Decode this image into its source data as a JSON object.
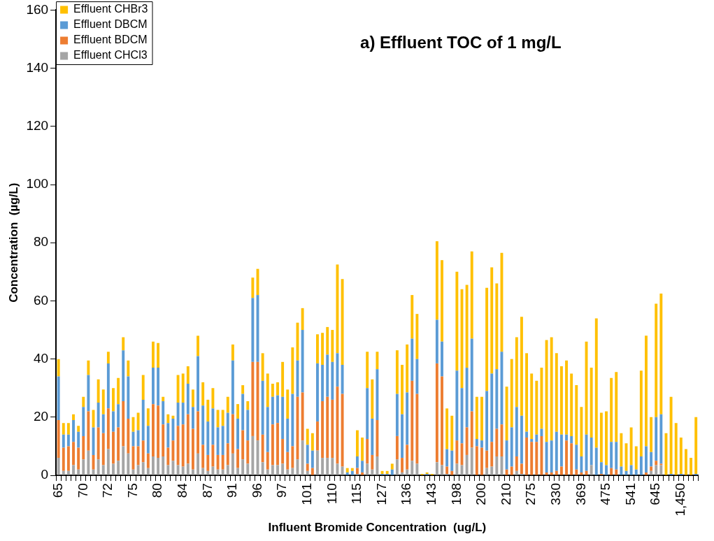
{
  "chart_data": {
    "type": "bar",
    "title": "a) Effluent TOC of 1 mg/L",
    "xlabel": "Influent Bromide Concentration  (ug/L)",
    "ylabel": "Concentration  (µg/L)",
    "categories": [
      "65",
      null,
      null,
      null,
      null,
      "70",
      null,
      null,
      null,
      null,
      "72",
      null,
      null,
      null,
      null,
      "75",
      null,
      null,
      null,
      null,
      "80",
      null,
      null,
      null,
      null,
      "84",
      null,
      null,
      null,
      null,
      "87",
      null,
      null,
      null,
      null,
      "91",
      null,
      null,
      null,
      null,
      "96",
      null,
      null,
      null,
      null,
      "97",
      null,
      null,
      null,
      null,
      "101",
      null,
      null,
      null,
      null,
      "110",
      null,
      null,
      null,
      null,
      "115",
      null,
      null,
      null,
      null,
      "127",
      null,
      null,
      null,
      null,
      "136",
      null,
      null,
      null,
      null,
      "143",
      null,
      null,
      null,
      null,
      "198",
      null,
      null,
      null,
      null,
      "200",
      null,
      null,
      null,
      null,
      "210",
      null,
      null,
      null,
      null,
      "275",
      null,
      null,
      null,
      null,
      "330",
      null,
      null,
      null,
      null,
      "369",
      null,
      null,
      null,
      null,
      "475",
      null,
      null,
      null,
      null,
      "541",
      null,
      null,
      null,
      null,
      "645",
      null,
      null,
      null,
      null,
      "1,450",
      null,
      null,
      null
    ],
    "stacked": true,
    "ylim": [
      0,
      160
    ],
    "yticks": [
      0,
      20,
      40,
      60,
      80,
      100,
      120,
      140,
      160
    ],
    "grid": false,
    "legend": "top left",
    "series": [
      {
        "name": "Effluent CHCl3",
        "color": "#a5a5a5",
        "values": [
          6,
          1.5,
          1.5,
          3.5,
          2,
          5.5,
          8.5,
          2,
          5.5,
          3.5,
          9,
          4,
          5,
          10,
          7.5,
          2,
          3.5,
          4.5,
          2.5,
          6.5,
          6,
          6.5,
          3.5,
          5,
          3.5,
          3,
          4,
          2,
          7.5,
          2.5,
          1.5,
          3,
          2,
          2,
          3.5,
          7.5,
          2.5,
          5.5,
          4,
          13.5,
          12,
          4.5,
          2,
          3.5,
          3.5,
          4,
          2,
          2.5,
          5.5,
          12,
          1.5,
          0,
          8.5,
          6,
          6,
          6,
          4,
          3,
          0,
          0,
          0.5,
          0,
          4,
          2,
          6.5,
          0,
          0,
          0,
          5.5,
          1,
          2,
          5,
          4,
          0,
          0,
          0,
          4.5,
          3.5,
          0.5,
          0,
          4,
          3.5,
          7,
          9.5,
          0,
          0,
          2.5,
          3,
          6.5,
          6.5,
          0,
          0,
          1.5,
          0.5,
          0,
          0,
          0,
          0,
          0,
          0,
          0,
          0,
          0,
          0,
          0,
          0,
          0,
          3.5,
          0,
          0,
          0,
          0,
          0,
          0,
          0,
          0,
          0,
          0,
          0,
          1.5,
          3.5,
          3.5,
          0,
          0,
          0,
          0,
          0,
          0,
          0
        ]
      },
      {
        "name": "Effluent BDCM",
        "color": "#ed7d31",
        "values": [
          13,
          8,
          8.5,
          8,
          7.5,
          8,
          13.5,
          5,
          11,
          11,
          14,
          11,
          11.5,
          15.5,
          12,
          8,
          6.5,
          7.5,
          5,
          18,
          18,
          11,
          6,
          7,
          13.5,
          14.5,
          17,
          14,
          14.5,
          8,
          5.5,
          7.5,
          5,
          5,
          7.5,
          13.5,
          6.5,
          10,
          8,
          25.5,
          27,
          9.5,
          6,
          14,
          14.5,
          8.5,
          6,
          7.5,
          21.5,
          16.5,
          2.5,
          2.5,
          10,
          19.5,
          21,
          20,
          26.5,
          25,
          0,
          0,
          2,
          1,
          8.5,
          5,
          12.5,
          0,
          0,
          0,
          8,
          5,
          8.5,
          27.5,
          24,
          0,
          0,
          0,
          34,
          30.5,
          2.5,
          1.5,
          8,
          7.5,
          9.5,
          12.5,
          10,
          9.5,
          6,
          8.5,
          9.5,
          11,
          2,
          3,
          5,
          3.5,
          13,
          11.5,
          11.5,
          13.5,
          1,
          1,
          1.5,
          3,
          12,
          11,
          2,
          1,
          1.5,
          0,
          0,
          0.5,
          0,
          2.5,
          2,
          0,
          0,
          0,
          0,
          0,
          1,
          1.5,
          1.5,
          0.5,
          0,
          0,
          0,
          0,
          0,
          0,
          0
        ]
      },
      {
        "name": "Effluent DBCM",
        "color": "#5b9bd5",
        "values": [
          15,
          4.5,
          4,
          7.5,
          5.5,
          10,
          12.5,
          9.5,
          8.5,
          6.5,
          15.5,
          7,
          8,
          17.5,
          14.5,
          5,
          5.5,
          14,
          9.5,
          12.5,
          13,
          8,
          8.5,
          7.5,
          8,
          7.5,
          10.5,
          7.5,
          19,
          13.5,
          11.5,
          12.5,
          9.5,
          10,
          10.5,
          18.5,
          10.5,
          12.5,
          10.5,
          22,
          23,
          18.5,
          15.5,
          9.5,
          9.5,
          14.5,
          11.5,
          18,
          12.5,
          21.5,
          6.5,
          6,
          20,
          12.5,
          14.5,
          13,
          11.5,
          10,
          1,
          1.5,
          4,
          4,
          17.5,
          12.5,
          17.5,
          0.5,
          0.5,
          2,
          14.5,
          15,
          18,
          14.5,
          12,
          0,
          0.5,
          0,
          15,
          12,
          6,
          7,
          24,
          19,
          20.5,
          25,
          2.5,
          2.5,
          20.5,
          23.5,
          20.5,
          25,
          10,
          13.5,
          17,
          16.5,
          2,
          1,
          2.5,
          2.5,
          10.5,
          11,
          13.5,
          11,
          2,
          2.5,
          8.5,
          5.5,
          12.5,
          9.5,
          9.5,
          4,
          3.5,
          9,
          9.5,
          3,
          1.5,
          3.5,
          2,
          6.5,
          9,
          5,
          15,
          17,
          0,
          0.5,
          0,
          0.5,
          0,
          0,
          0.5
        ]
      },
      {
        "name": "Effluent CHBr3",
        "color": "#ffc000",
        "values": [
          6,
          4,
          4,
          2,
          2,
          3.5,
          5,
          6,
          8,
          8.5,
          4,
          8,
          9,
          4.5,
          5.5,
          5,
          6,
          8.5,
          6,
          9,
          8.5,
          1.5,
          3,
          1,
          9.5,
          10,
          6,
          6,
          7,
          8,
          7.5,
          7,
          6,
          5.5,
          5.5,
          5.5,
          5,
          3,
          3,
          7,
          9,
          9.5,
          11.5,
          4.5,
          4.5,
          12,
          10,
          16,
          13,
          7.5,
          5.5,
          6,
          10,
          11,
          9.5,
          11,
          30.5,
          29.5,
          1.5,
          1,
          9,
          8,
          12.5,
          13.5,
          6,
          1,
          1,
          2,
          15,
          17,
          16.5,
          15,
          15.5,
          0.5,
          0.5,
          0.5,
          27,
          28,
          14,
          12,
          34,
          34,
          28.5,
          30,
          14.5,
          15,
          35.5,
          36.5,
          29.5,
          34,
          18.5,
          23.5,
          24,
          34,
          27,
          22.5,
          18.5,
          21,
          35,
          35.5,
          27,
          23.5,
          25.5,
          21.5,
          20.5,
          17,
          32,
          24,
          44.5,
          17,
          18.5,
          22,
          24,
          11.5,
          9.5,
          13,
          8,
          29.5,
          38,
          12,
          39,
          41.5,
          14.5,
          26.5,
          18,
          12.5,
          9,
          6,
          19.5
        ]
      }
    ]
  }
}
